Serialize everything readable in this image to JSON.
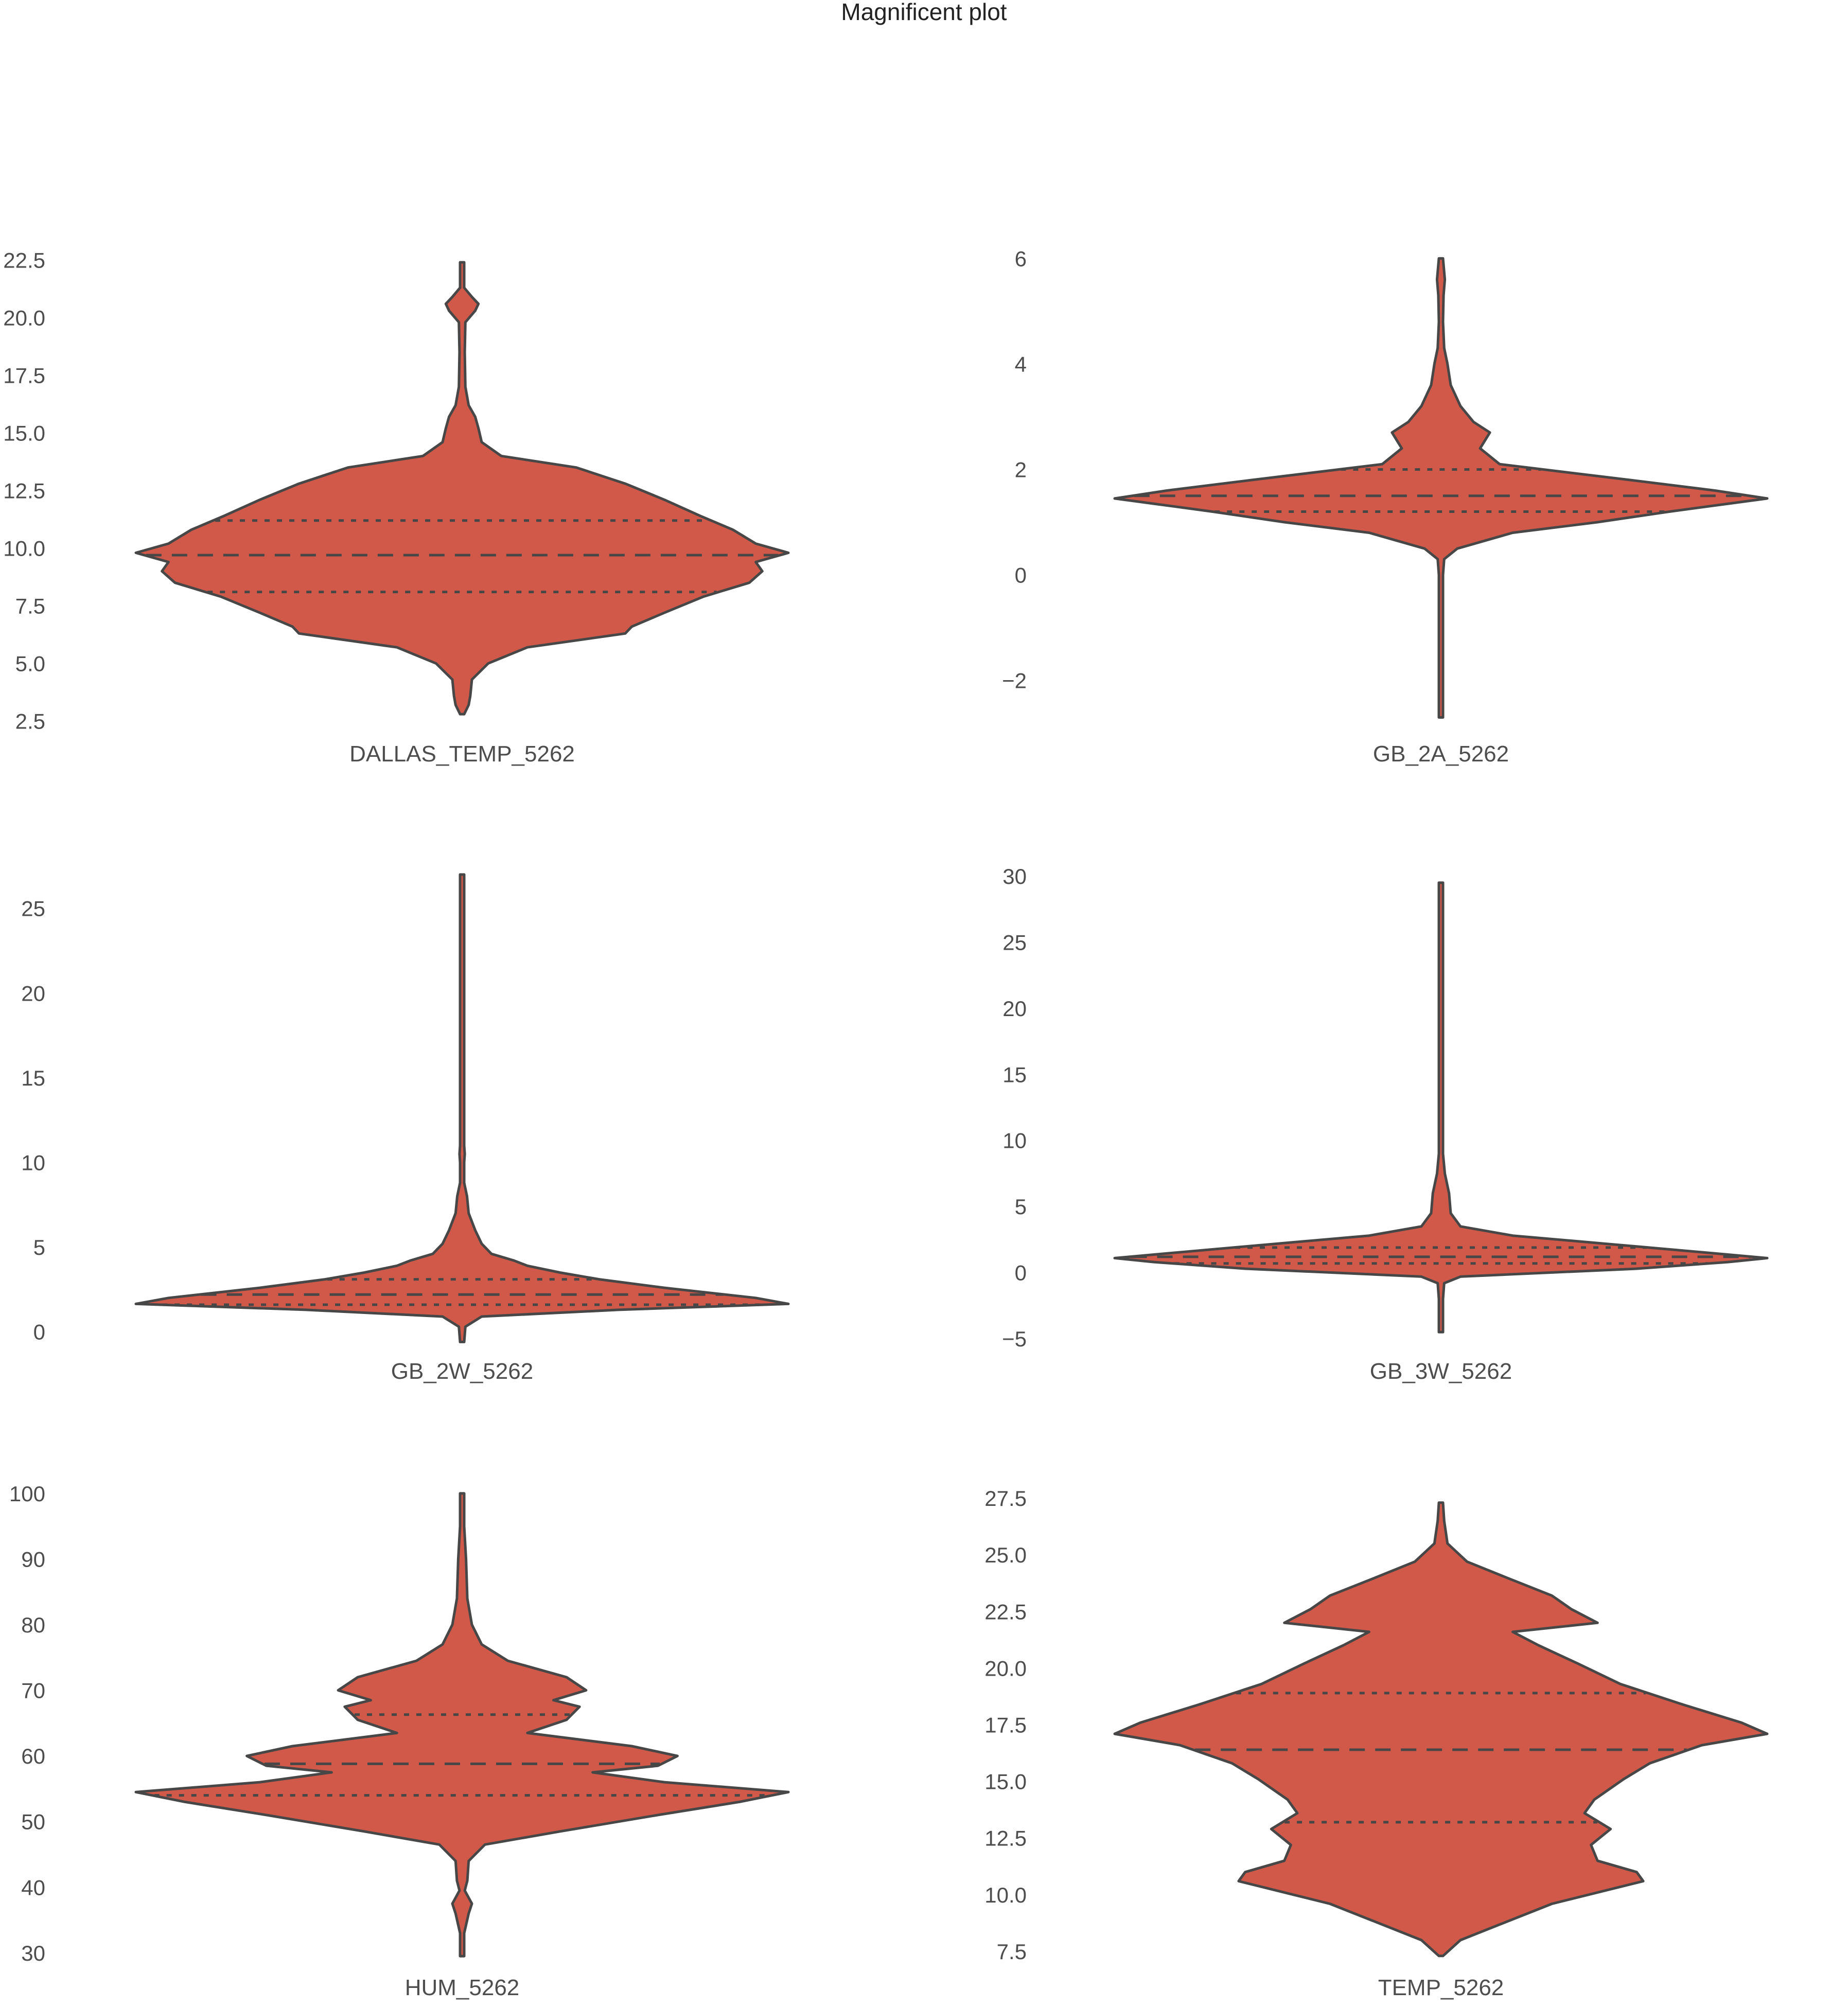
{
  "title": "Magnificent plot",
  "colors": {
    "violin_fill": "#d0594a",
    "violin_edge": "#474747",
    "text": "#4d4d4d",
    "background": "#ffffff"
  },
  "chart_data": [
    {
      "type": "violin",
      "category": "DALLAS_TEMP_5262",
      "ylim": [
        2.2,
        22.8
      ],
      "yticks": [
        2.5,
        5.0,
        7.5,
        10.0,
        12.5,
        15.0,
        17.5,
        20.0,
        22.5
      ],
      "ytick_labels": [
        "2.5",
        "5.0",
        "7.5",
        "10.0",
        "12.5",
        "15.0",
        "17.5",
        "20.0",
        "22.5"
      ],
      "min": 2.8,
      "max": 22.4,
      "quartiles": [
        8.1,
        9.7,
        11.2
      ],
      "density": [
        [
          2.8,
          0
        ],
        [
          3.2,
          0.02
        ],
        [
          3.6,
          0.025
        ],
        [
          4.3,
          0.03
        ],
        [
          5.0,
          0.08
        ],
        [
          5.7,
          0.2
        ],
        [
          6.3,
          0.5
        ],
        [
          6.6,
          0.52
        ],
        [
          7.2,
          0.62
        ],
        [
          7.9,
          0.74
        ],
        [
          8.5,
          0.88
        ],
        [
          9.0,
          0.92
        ],
        [
          9.4,
          0.9
        ],
        [
          9.8,
          1.0
        ],
        [
          10.2,
          0.9
        ],
        [
          10.8,
          0.83
        ],
        [
          11.4,
          0.73
        ],
        [
          12.1,
          0.62
        ],
        [
          12.8,
          0.5
        ],
        [
          13.5,
          0.35
        ],
        [
          14.0,
          0.12
        ],
        [
          14.6,
          0.06
        ],
        [
          15.2,
          0.05
        ],
        [
          15.7,
          0.04
        ],
        [
          16.2,
          0.02
        ],
        [
          17.0,
          0.01
        ],
        [
          18.5,
          0.008
        ],
        [
          19.8,
          0.01
        ],
        [
          20.3,
          0.04
        ],
        [
          20.6,
          0.05
        ],
        [
          20.9,
          0.03
        ],
        [
          21.3,
          0.006
        ],
        [
          22.4,
          0
        ]
      ]
    },
    {
      "type": "violin",
      "category": "GB_2A_5262",
      "ylim": [
        -2.9,
        6.1
      ],
      "yticks": [
        -2,
        0,
        2,
        4,
        6
      ],
      "ytick_labels": [
        "−2",
        "0",
        "2",
        "4",
        "6"
      ],
      "min": -2.7,
      "max": 6.0,
      "quartiles": [
        1.2,
        1.5,
        2.0
      ],
      "density": [
        [
          -2.7,
          0
        ],
        [
          -2.0,
          0.004
        ],
        [
          -1.0,
          0.004
        ],
        [
          0.0,
          0.004
        ],
        [
          0.3,
          0.01
        ],
        [
          0.5,
          0.05
        ],
        [
          0.8,
          0.22
        ],
        [
          1.0,
          0.48
        ],
        [
          1.2,
          0.7
        ],
        [
          1.35,
          0.88
        ],
        [
          1.45,
          1.0
        ],
        [
          1.6,
          0.84
        ],
        [
          1.8,
          0.58
        ],
        [
          1.95,
          0.38
        ],
        [
          2.1,
          0.18
        ],
        [
          2.4,
          0.12
        ],
        [
          2.7,
          0.15
        ],
        [
          2.9,
          0.1
        ],
        [
          3.2,
          0.06
        ],
        [
          3.6,
          0.03
        ],
        [
          4.0,
          0.02
        ],
        [
          4.3,
          0.01
        ],
        [
          4.8,
          0.006
        ],
        [
          5.3,
          0.008
        ],
        [
          5.6,
          0.012
        ],
        [
          6.0,
          0
        ]
      ]
    },
    {
      "type": "violin",
      "category": "GB_2W_5262",
      "ylim": [
        -0.8,
        27.3
      ],
      "yticks": [
        0,
        5,
        10,
        15,
        20,
        25
      ],
      "ytick_labels": [
        "0",
        "5",
        "10",
        "15",
        "20",
        "25"
      ],
      "min": -0.6,
      "max": 27.0,
      "quartiles": [
        1.6,
        2.2,
        3.1
      ],
      "density": [
        [
          -0.6,
          0
        ],
        [
          0.3,
          0.01
        ],
        [
          0.9,
          0.06
        ],
        [
          1.3,
          0.48
        ],
        [
          1.65,
          1.0
        ],
        [
          2.0,
          0.9
        ],
        [
          2.6,
          0.62
        ],
        [
          3.1,
          0.42
        ],
        [
          3.5,
          0.3
        ],
        [
          3.9,
          0.2
        ],
        [
          4.2,
          0.16
        ],
        [
          4.6,
          0.09
        ],
        [
          5.2,
          0.06
        ],
        [
          6.0,
          0.04
        ],
        [
          7.0,
          0.02
        ],
        [
          8.0,
          0.015
        ],
        [
          8.8,
          0.006
        ],
        [
          10.0,
          0.004
        ],
        [
          10.5,
          0.008
        ],
        [
          11.0,
          0.003
        ],
        [
          15.0,
          0.002
        ],
        [
          27.0,
          0
        ]
      ]
    },
    {
      "type": "violin",
      "category": "GB_3W_5262",
      "ylim": [
        -5.5,
        30.5
      ],
      "yticks": [
        -5,
        0,
        5,
        10,
        15,
        20,
        25,
        30
      ],
      "ytick_labels": [
        "−5",
        "0",
        "5",
        "10",
        "15",
        "20",
        "25",
        "30"
      ],
      "min": -4.5,
      "max": 29.5,
      "quartiles": [
        0.7,
        1.2,
        1.9
      ],
      "density": [
        [
          -4.5,
          0
        ],
        [
          -2.0,
          0.004
        ],
        [
          -0.8,
          0.01
        ],
        [
          -0.3,
          0.06
        ],
        [
          0.3,
          0.6
        ],
        [
          0.8,
          0.88
        ],
        [
          1.1,
          1.0
        ],
        [
          1.5,
          0.82
        ],
        [
          2.2,
          0.5
        ],
        [
          2.8,
          0.22
        ],
        [
          3.5,
          0.06
        ],
        [
          4.5,
          0.03
        ],
        [
          6.0,
          0.025
        ],
        [
          7.5,
          0.012
        ],
        [
          9.0,
          0.006
        ],
        [
          12.0,
          0.004
        ],
        [
          16.0,
          0.003
        ],
        [
          29.5,
          0
        ]
      ]
    },
    {
      "type": "violin",
      "category": "HUM_5262",
      "ylim": [
        28.5,
        101
      ],
      "yticks": [
        30,
        40,
        50,
        60,
        70,
        80,
        90,
        100
      ],
      "ytick_labels": [
        "30",
        "40",
        "50",
        "60",
        "70",
        "80",
        "90",
        "100"
      ],
      "min": 29.5,
      "max": 100.0,
      "quartiles": [
        54.0,
        58.8,
        66.3
      ],
      "density": [
        [
          29.5,
          0
        ],
        [
          33.0,
          0.004
        ],
        [
          36.0,
          0.02
        ],
        [
          37.5,
          0.03
        ],
        [
          39.5,
          0.008
        ],
        [
          41.0,
          0.016
        ],
        [
          44.0,
          0.02
        ],
        [
          46.5,
          0.07
        ],
        [
          48.5,
          0.3
        ],
        [
          51.0,
          0.6
        ],
        [
          53.0,
          0.85
        ],
        [
          54.5,
          1.0
        ],
        [
          56.0,
          0.62
        ],
        [
          57.5,
          0.4
        ],
        [
          58.5,
          0.6
        ],
        [
          60.0,
          0.66
        ],
        [
          61.5,
          0.52
        ],
        [
          63.5,
          0.2
        ],
        [
          65.5,
          0.32
        ],
        [
          67.5,
          0.36
        ],
        [
          68.5,
          0.28
        ],
        [
          70.0,
          0.38
        ],
        [
          72.0,
          0.32
        ],
        [
          74.5,
          0.14
        ],
        [
          77.0,
          0.06
        ],
        [
          80.0,
          0.03
        ],
        [
          84.0,
          0.016
        ],
        [
          90.0,
          0.012
        ],
        [
          95.0,
          0.004
        ],
        [
          100.0,
          0
        ]
      ]
    },
    {
      "type": "violin",
      "category": "TEMP_5262",
      "ylim": [
        7.0,
        28.0
      ],
      "yticks": [
        7.5,
        10.0,
        12.5,
        15.0,
        17.5,
        20.0,
        22.5,
        25.0,
        27.5
      ],
      "ytick_labels": [
        "7.5",
        "10.0",
        "12.5",
        "15.0",
        "17.5",
        "20.0",
        "22.5",
        "25.0",
        "27.5"
      ],
      "min": 7.3,
      "max": 27.3,
      "quartiles": [
        13.2,
        16.4,
        18.9
      ],
      "density": [
        [
          7.3,
          0
        ],
        [
          8.0,
          0.06
        ],
        [
          8.8,
          0.2
        ],
        [
          9.6,
          0.34
        ],
        [
          10.6,
          0.62
        ],
        [
          11.0,
          0.6
        ],
        [
          11.5,
          0.48
        ],
        [
          12.2,
          0.46
        ],
        [
          12.9,
          0.52
        ],
        [
          13.6,
          0.44
        ],
        [
          14.2,
          0.47
        ],
        [
          15.1,
          0.56
        ],
        [
          15.8,
          0.64
        ],
        [
          16.6,
          0.8
        ],
        [
          17.1,
          1.0
        ],
        [
          17.6,
          0.92
        ],
        [
          18.4,
          0.74
        ],
        [
          19.3,
          0.55
        ],
        [
          20.2,
          0.42
        ],
        [
          21.0,
          0.3
        ],
        [
          21.6,
          0.22
        ],
        [
          22.0,
          0.48
        ],
        [
          22.6,
          0.4
        ],
        [
          23.2,
          0.34
        ],
        [
          24.0,
          0.2
        ],
        [
          24.7,
          0.08
        ],
        [
          25.5,
          0.02
        ],
        [
          26.5,
          0.01
        ],
        [
          27.3,
          0
        ]
      ]
    }
  ]
}
